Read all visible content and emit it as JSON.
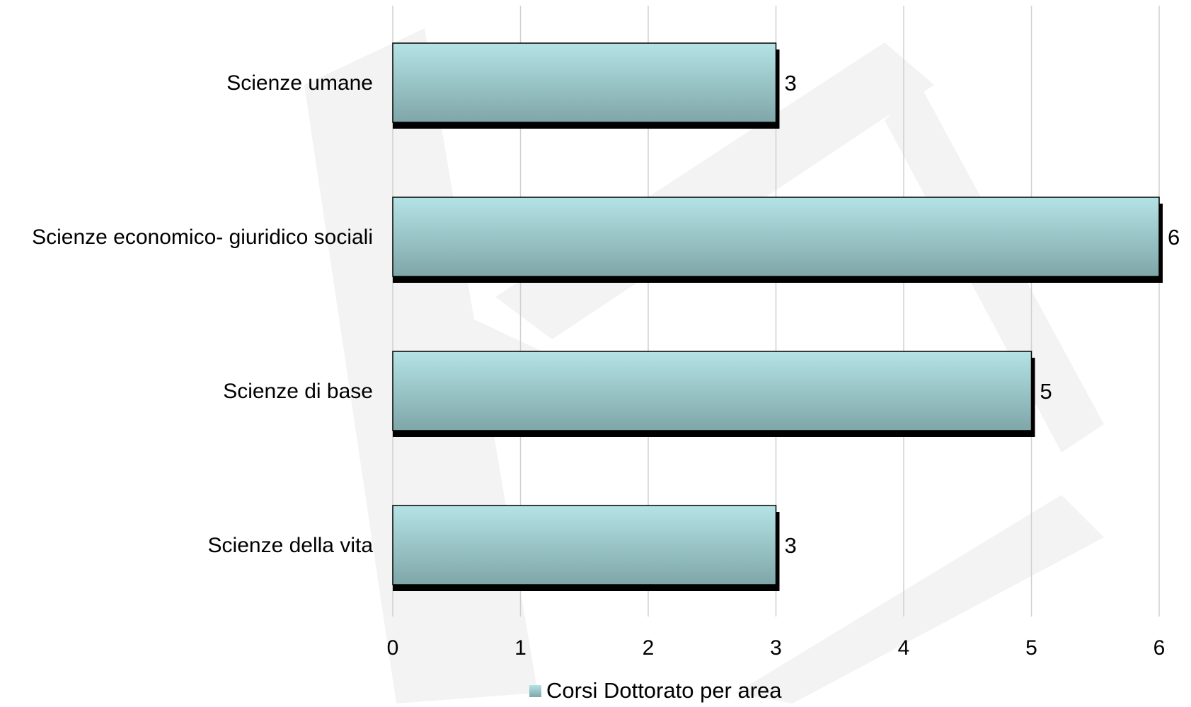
{
  "chart_data": {
    "type": "bar",
    "orientation": "horizontal",
    "categories": [
      "Scienze umane",
      "Scienze economico- giuridico sociali",
      "Scienze di base",
      "Scienze della vita"
    ],
    "series": [
      {
        "name": "Corsi Dottorato per area",
        "values": [
          3,
          6,
          5,
          3
        ],
        "color": "#9fd0d4"
      }
    ],
    "data_labels": [
      "3",
      "6",
      "5",
      "3"
    ],
    "xlim": [
      0,
      6
    ],
    "x_ticks": [
      "0",
      "1",
      "2",
      "3",
      "4",
      "5",
      "6"
    ],
    "title": "",
    "xlabel": "",
    "ylabel": "",
    "grid": "vertical",
    "legend_position": "bottom",
    "bar_style": "gradient with dark 3D shadow",
    "colors": {
      "bar_top": "#b4e3e6",
      "bar_bottom": "#7fa6a8",
      "shadow": "#000000",
      "grid": "#d0d0d0",
      "watermark": "#f3f3f3"
    }
  }
}
